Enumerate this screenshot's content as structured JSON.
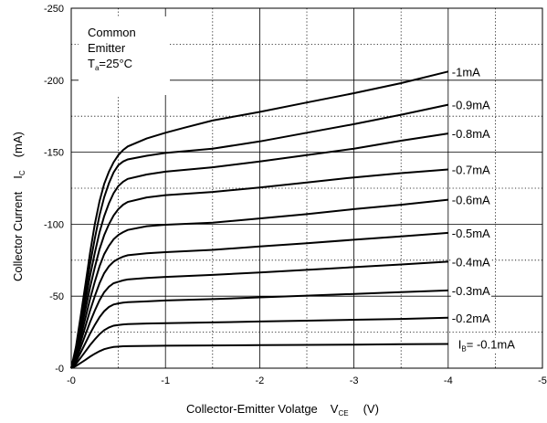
{
  "chart_data": {
    "type": "line",
    "title": "",
    "xlabel": "Collector-Emitter Volatge",
    "xlabel_symbol": "V",
    "xlabel_sub": "CE",
    "xlabel_unit": "(V)",
    "ylabel": "Collector Current",
    "ylabel_symbol": "I",
    "ylabel_sub": "C",
    "ylabel_unit": "(mA)",
    "xlim": [
      0,
      -5
    ],
    "ylim": [
      0,
      -250
    ],
    "xticks": [
      0,
      -1,
      -2,
      -3,
      -4,
      -5
    ],
    "xtick_labels": [
      "-0",
      "-1",
      "-2",
      "-3",
      "-4",
      "-5"
    ],
    "yticks": [
      0,
      -50,
      -100,
      -150,
      -200,
      -250
    ],
    "ytick_labels": [
      "-0",
      "-50",
      "-100",
      "-150",
      "-200",
      "-250"
    ],
    "grid": "major solid, minor dotted",
    "annotation": {
      "line1": "Common",
      "line2": "Emitter",
      "line3_pre": "T",
      "line3_sub": "a",
      "line3_post": "=25°C"
    },
    "series": [
      {
        "name": "-0.1mA",
        "label_pre": "I",
        "label_sub": "B",
        "label_post": "= -0.1mA",
        "x": [
          0,
          -0.05,
          -0.1,
          -0.15,
          -0.2,
          -0.25,
          -0.3,
          -0.35,
          -0.4,
          -0.45,
          -0.5,
          -0.55,
          -0.6,
          -0.8,
          -1,
          -1.5,
          -2,
          -2.5,
          -3,
          -3.5,
          -4
        ],
        "y": [
          0,
          -1.5,
          -3.6,
          -5.8,
          -8,
          -10,
          -11.8,
          -13.2,
          -14.1,
          -14.7,
          -15,
          -15.2,
          -15.3,
          -15.5,
          -15.6,
          -15.8,
          -16,
          -16.2,
          -16.4,
          -16.6,
          -16.8
        ]
      },
      {
        "name": "-0.2mA",
        "x": [
          0,
          -0.05,
          -0.1,
          -0.15,
          -0.2,
          -0.25,
          -0.3,
          -0.35,
          -0.4,
          -0.45,
          -0.5,
          -0.55,
          -0.6,
          -0.8,
          -1,
          -1.5,
          -2,
          -2.5,
          -3,
          -3.5,
          -4
        ],
        "y": [
          0,
          -3,
          -7.2,
          -11.6,
          -16,
          -20,
          -23.6,
          -26.4,
          -28.3,
          -29.5,
          -30,
          -30.4,
          -30.6,
          -31,
          -31.3,
          -31.8,
          -32.4,
          -33,
          -33.6,
          -34.2,
          -35
        ]
      },
      {
        "name": "-0.3mA",
        "x": [
          0,
          -0.05,
          -0.1,
          -0.15,
          -0.2,
          -0.25,
          -0.3,
          -0.35,
          -0.4,
          -0.45,
          -0.5,
          -0.55,
          -0.6,
          -0.8,
          -1,
          -1.5,
          -2,
          -2.5,
          -3,
          -3.5,
          -4
        ],
        "y": [
          0,
          -4.5,
          -10.8,
          -17.4,
          -24,
          -30,
          -35.4,
          -39.6,
          -42.5,
          -44.2,
          -45,
          -45.5,
          -45.8,
          -46.4,
          -47,
          -48,
          -49.2,
          -50.4,
          -51.6,
          -52.8,
          -54
        ]
      },
      {
        "name": "-0.4mA",
        "x": [
          0,
          -0.05,
          -0.1,
          -0.15,
          -0.2,
          -0.25,
          -0.3,
          -0.35,
          -0.4,
          -0.45,
          -0.5,
          -0.55,
          -0.6,
          -0.8,
          -1,
          -1.5,
          -2,
          -2.5,
          -3,
          -3.5,
          -4
        ],
        "y": [
          0,
          -6,
          -14.4,
          -23.2,
          -32,
          -40,
          -47.2,
          -52.8,
          -56.6,
          -59,
          -60,
          -61,
          -61.6,
          -62.6,
          -63.4,
          -64.8,
          -66.5,
          -68.3,
          -70.2,
          -72,
          -74
        ]
      },
      {
        "name": "-0.5mA",
        "x": [
          0,
          -0.05,
          -0.1,
          -0.15,
          -0.2,
          -0.25,
          -0.3,
          -0.35,
          -0.4,
          -0.45,
          -0.5,
          -0.55,
          -0.6,
          -0.8,
          -1,
          -1.5,
          -2,
          -2.5,
          -3,
          -3.5,
          -4
        ],
        "y": [
          0,
          -7.5,
          -18,
          -29,
          -40,
          -50,
          -59,
          -66,
          -70.8,
          -74,
          -76,
          -77.5,
          -78.4,
          -79.8,
          -80.6,
          -82.2,
          -84.5,
          -86.8,
          -89.2,
          -91.5,
          -94
        ]
      },
      {
        "name": "-0.6mA",
        "x": [
          0,
          -0.05,
          -0.1,
          -0.15,
          -0.2,
          -0.25,
          -0.3,
          -0.35,
          -0.4,
          -0.45,
          -0.5,
          -0.55,
          -0.6,
          -0.8,
          -1,
          -1.5,
          -2,
          -2.5,
          -3,
          -3.5,
          -4
        ],
        "y": [
          0,
          -9,
          -21.6,
          -34.8,
          -48,
          -60,
          -70.8,
          -79.2,
          -85,
          -89.5,
          -92.5,
          -94.5,
          -96,
          -98.6,
          -99.6,
          -101,
          -104,
          -107,
          -110.5,
          -113.5,
          -117
        ]
      },
      {
        "name": "-0.7mA",
        "x": [
          0,
          -0.05,
          -0.1,
          -0.15,
          -0.2,
          -0.25,
          -0.3,
          -0.35,
          -0.4,
          -0.45,
          -0.5,
          -0.55,
          -0.6,
          -0.8,
          -1,
          -1.5,
          -2,
          -2.5,
          -3,
          -3.5,
          -4
        ],
        "y": [
          0,
          -10.5,
          -25.2,
          -40.6,
          -56,
          -70,
          -82.6,
          -92.4,
          -100,
          -106,
          -110.5,
          -113.5,
          -115.5,
          -118.6,
          -120.2,
          -122.4,
          -125.5,
          -129,
          -132.5,
          -135.5,
          -138
        ]
      },
      {
        "name": "-0.8mA",
        "x": [
          0,
          -0.05,
          -0.1,
          -0.15,
          -0.2,
          -0.25,
          -0.3,
          -0.35,
          -0.4,
          -0.45,
          -0.5,
          -0.55,
          -0.6,
          -0.8,
          -1,
          -1.5,
          -2,
          -2.5,
          -3,
          -3.5,
          -4
        ],
        "y": [
          0,
          -12,
          -28.8,
          -46.4,
          -64,
          -80,
          -94.4,
          -105.6,
          -114.5,
          -121.5,
          -126.5,
          -129.5,
          -131.5,
          -134.5,
          -136.5,
          -139.5,
          -143.5,
          -148,
          -152.5,
          -158,
          -163
        ]
      },
      {
        "name": "-0.9mA",
        "x": [
          0,
          -0.05,
          -0.1,
          -0.15,
          -0.2,
          -0.25,
          -0.3,
          -0.35,
          -0.4,
          -0.45,
          -0.5,
          -0.55,
          -0.6,
          -0.8,
          -1,
          -1.5,
          -2,
          -2.5,
          -3,
          -3.5,
          -4
        ],
        "y": [
          0,
          -13.5,
          -32.4,
          -52.2,
          -72,
          -90,
          -106.2,
          -118.8,
          -128.5,
          -136,
          -141,
          -143.5,
          -145,
          -147.5,
          -149.5,
          -152.5,
          -157.5,
          -163.5,
          -169.5,
          -176,
          -183
        ]
      },
      {
        "name": "-1mA",
        "x": [
          0,
          -0.05,
          -0.1,
          -0.15,
          -0.2,
          -0.25,
          -0.3,
          -0.35,
          -0.4,
          -0.45,
          -0.5,
          -0.55,
          -0.6,
          -0.8,
          -1,
          -1.2,
          -1.5,
          -2,
          -2.5,
          -3,
          -3.5,
          -4
        ],
        "y": [
          0,
          -15,
          -36,
          -58,
          -80,
          -100,
          -116,
          -128,
          -136.5,
          -143,
          -148,
          -151.5,
          -154,
          -159.5,
          -163.5,
          -167,
          -172,
          -178,
          -184.5,
          -191,
          -198,
          -206
        ]
      }
    ]
  }
}
